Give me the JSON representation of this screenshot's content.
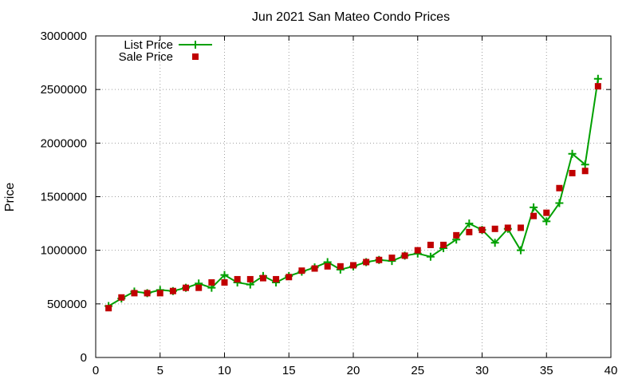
{
  "chart_data": {
    "type": "line",
    "title": "Jun 2021 San Mateo Condo Prices",
    "xlabel": "",
    "ylabel": "Price",
    "xlim": [
      0,
      40
    ],
    "ylim": [
      0,
      3000000
    ],
    "x_ticks": [
      0,
      5,
      10,
      15,
      20,
      25,
      30,
      35,
      40
    ],
    "y_ticks": [
      0,
      500000,
      1000000,
      1500000,
      2000000,
      2500000,
      3000000
    ],
    "grid": true,
    "legend_position": "top-left",
    "x": [
      1,
      2,
      3,
      4,
      5,
      6,
      7,
      8,
      9,
      10,
      11,
      12,
      13,
      14,
      15,
      16,
      17,
      18,
      19,
      20,
      21,
      22,
      23,
      24,
      25,
      26,
      27,
      28,
      29,
      30,
      31,
      32,
      33,
      34,
      35,
      36,
      37,
      38,
      39
    ],
    "series": [
      {
        "name": "List Price",
        "style": "line-with-plus-markers",
        "color": "#00a000",
        "values": [
          480000,
          550000,
          615000,
          600000,
          630000,
          620000,
          650000,
          690000,
          650000,
          770000,
          700000,
          680000,
          760000,
          700000,
          760000,
          800000,
          840000,
          890000,
          820000,
          850000,
          890000,
          910000,
          900000,
          950000,
          970000,
          940000,
          1020000,
          1100000,
          1250000,
          1190000,
          1070000,
          1200000,
          1000000,
          1400000,
          1270000,
          1440000,
          1900000,
          1800000,
          2600000
        ]
      },
      {
        "name": "Sale Price",
        "style": "square-markers",
        "color": "#c00000",
        "values": [
          460000,
          560000,
          600000,
          600000,
          600000,
          620000,
          650000,
          650000,
          700000,
          700000,
          730000,
          730000,
          740000,
          730000,
          750000,
          810000,
          830000,
          850000,
          850000,
          860000,
          890000,
          910000,
          930000,
          950000,
          1000000,
          1050000,
          1050000,
          1140000,
          1170000,
          1190000,
          1200000,
          1210000,
          1210000,
          1320000,
          1350000,
          1580000,
          1720000,
          1740000,
          2530000
        ]
      }
    ]
  }
}
